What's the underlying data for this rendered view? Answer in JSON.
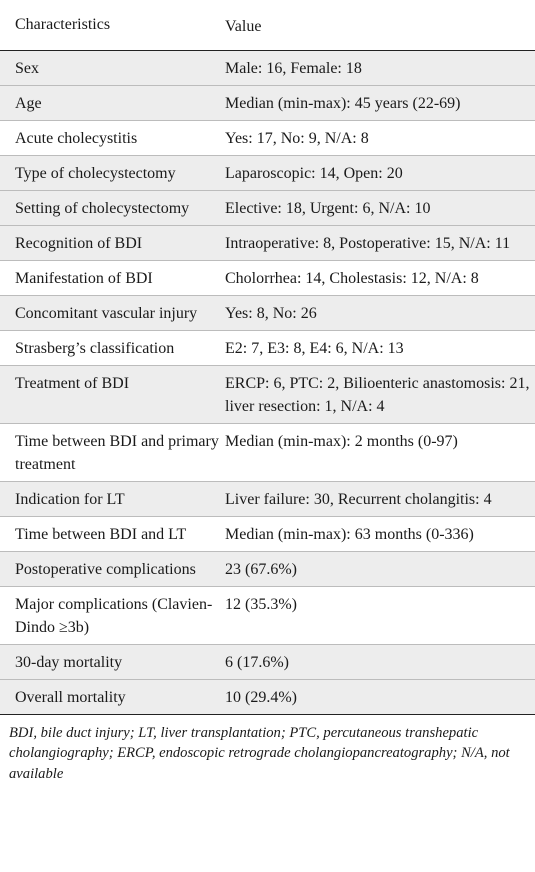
{
  "table": {
    "header": {
      "col1": "Characteristics",
      "col2": "Value"
    },
    "rows": [
      {
        "label": "Sex",
        "value": "Male: 16, Female: 18"
      },
      {
        "label": "Age",
        "value": "Median (min-max): 45 years (22-69)"
      },
      {
        "label": "Acute cholecystitis",
        "value": "Yes: 17, No: 9, N/A: 8"
      },
      {
        "label": "Type of cholecystectomy",
        "value": "Laparoscopic: 14, Open: 20"
      },
      {
        "label": "Setting of cholecystectomy",
        "value": "Elective: 18, Urgent: 6, N/A: 10"
      },
      {
        "label": "Recognition of BDI",
        "value": "Intraoperative: 8, Postoperative: 15, N/A: 11"
      },
      {
        "label": "Manifestation of BDI",
        "value": "Cholorrhea: 14, Cholestasis: 12, N/A: 8"
      },
      {
        "label": "Concomitant vascular injury",
        "value": "Yes: 8, No: 26"
      },
      {
        "label": "Strasberg’s classification",
        "value": "E2: 7, E3: 8, E4: 6, N/A: 13"
      },
      {
        "label": "Treatment of BDI",
        "value": "ERCP: 6, PTC: 2, Bilioenteric anastomosis: 21, liver resection: 1, N/A: 4"
      },
      {
        "label": "Time between BDI and primary treatment",
        "value": "Median (min-max): 2 months (0-97)"
      },
      {
        "label": "Indication for LT",
        "value": "Liver failure: 30, Recurrent cholangitis: 4"
      },
      {
        "label": "Time between BDI and LT",
        "value": "Median (min-max): 63 months (0-336)"
      },
      {
        "label": "Postoperative complications",
        "value": "23 (67.6%)"
      },
      {
        "label": "Major complications (Clavien-Dindo ≥3b)",
        "value": "12 (35.3%)"
      },
      {
        "label": "30-day mortality",
        "value": "6 (17.6%)"
      },
      {
        "label": "Overall mortality",
        "value": "10 (29.4%)"
      }
    ]
  },
  "footnote": "BDI, bile duct injury; LT, liver transplantation; PTC, percutaneous transhepatic cholangiography; ERCP, endoscopic retrograde cholangiopancreatography; N/A, not available",
  "colors": {
    "shade": "#ededed",
    "rule": "#222222",
    "separator": "#bcbcbc"
  }
}
